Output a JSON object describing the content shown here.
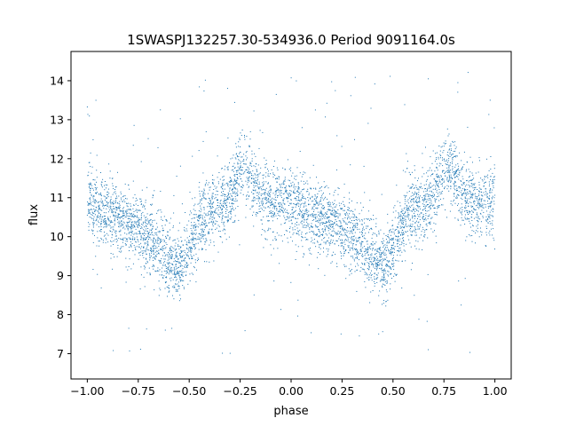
{
  "chart_data": {
    "type": "scatter",
    "title": "1SWASPJ132257.30-534936.0 Period 9091164.0s",
    "xlabel": "phase",
    "ylabel": "flux",
    "xlim": [
      -1.08,
      1.08
    ],
    "ylim": [
      6.35,
      14.75
    ],
    "xticks": [
      -1.0,
      -0.75,
      -0.5,
      -0.25,
      0.0,
      0.25,
      0.5,
      0.75,
      1.0
    ],
    "xtick_labels": [
      "−1.00",
      "−0.75",
      "−0.50",
      "−0.25",
      "0.00",
      "0.25",
      "0.50",
      "0.75",
      "1.00"
    ],
    "yticks": [
      7,
      8,
      9,
      10,
      11,
      12,
      13,
      14
    ],
    "ytick_labels": [
      "7",
      "8",
      "9",
      "10",
      "11",
      "12",
      "13",
      "14"
    ],
    "grid": false,
    "point_color": "#1f77b4",
    "trend": {
      "phase": [
        0.0,
        0.05,
        0.1,
        0.15,
        0.2,
        0.25,
        0.3,
        0.35,
        0.4,
        0.45,
        0.5,
        0.55,
        0.6,
        0.65,
        0.7,
        0.75,
        0.8,
        0.85,
        0.9,
        0.95,
        1.0
      ],
      "flux": [
        10.9,
        10.7,
        10.6,
        10.5,
        10.35,
        10.2,
        10.0,
        9.8,
        9.5,
        9.2,
        9.7,
        10.3,
        10.6,
        10.8,
        11.0,
        11.8,
        11.6,
        11.0,
        10.9,
        10.9,
        10.9
      ],
      "scatter": 0.45
    },
    "points_per_unit_phase": 2600,
    "outlier_fraction": 0.03
  }
}
